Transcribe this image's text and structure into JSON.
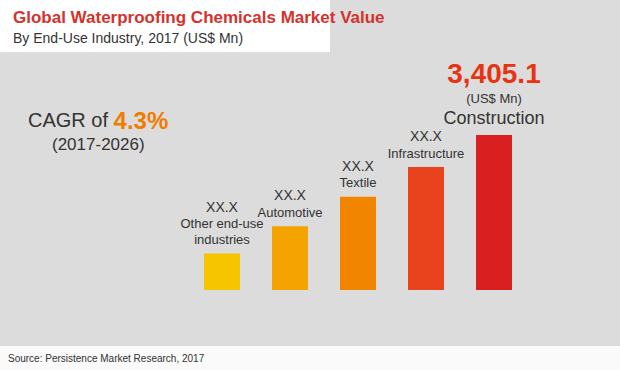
{
  "chart_data": {
    "type": "bar",
    "title": "Global Waterproofing Chemicals Market Value",
    "subtitle": "By End-Use Industry, 2017 (US$ Mn)",
    "categories": [
      "Other end-use industries",
      "Automotive",
      "Textile",
      "Infrastructure",
      "Construction"
    ],
    "values": [
      800,
      1400,
      2050,
      2700,
      3405.1
    ],
    "value_labels": [
      "XX.X",
      "XX.X",
      "XX.X",
      "XX.X",
      "3,405.1"
    ],
    "colors": [
      "#f6c500",
      "#f5a300",
      "#f28500",
      "#e8431d",
      "#d91f1f"
    ],
    "data_labels": true,
    "tick_labels": false,
    "grid": false,
    "annotations": [
      {
        "text": "CAGR of 4.3%"
      },
      {
        "text": "(2017-2026)"
      },
      {
        "text": "(US$ Mn)",
        "category": "Construction"
      },
      {
        "text": "Source: Persistence Market Research, 2017"
      }
    ]
  }
}
